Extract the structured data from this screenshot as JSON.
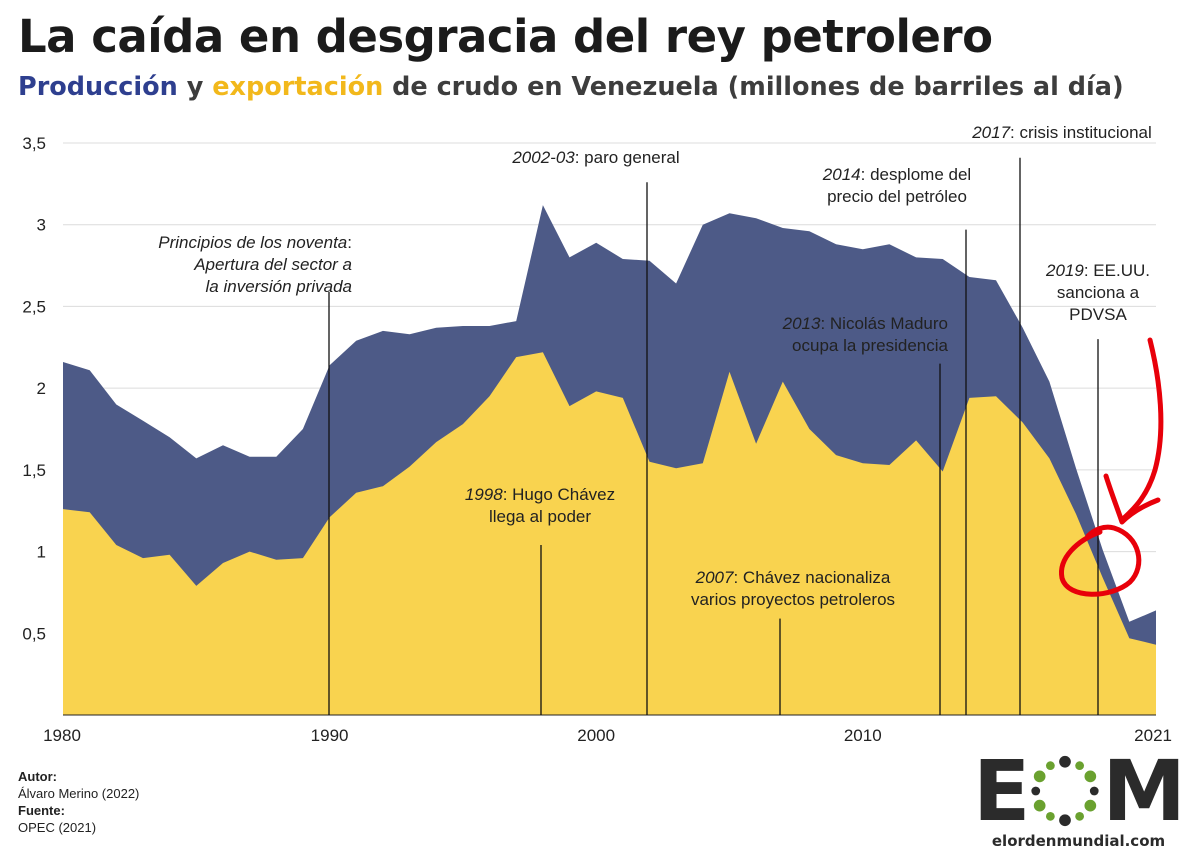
{
  "title": "La caída en desgracia del rey petrolero",
  "subtitle": {
    "part1": "Producción",
    "part2": " y ",
    "part3": "exportación",
    "part4": " de crudo en Venezuela (millones de barriles al día)"
  },
  "colors": {
    "production": "#4d5a87",
    "export": "#f9d34f",
    "production_text": "#2e3f8f",
    "export_text": "#f2b81b",
    "annotation_line": "#111111",
    "red_marker": "#e8000a"
  },
  "chart_data": {
    "type": "area",
    "x": [
      1980,
      1981,
      1982,
      1983,
      1984,
      1985,
      1986,
      1987,
      1988,
      1989,
      1990,
      1991,
      1992,
      1993,
      1994,
      1995,
      1996,
      1997,
      1998,
      1999,
      2000,
      2001,
      2002,
      2003,
      2004,
      2005,
      2006,
      2007,
      2008,
      2009,
      2010,
      2011,
      2012,
      2013,
      2014,
      2015,
      2016,
      2017,
      2018,
      2019,
      2020,
      2021
    ],
    "series": [
      {
        "name": "Producción",
        "values": [
          2.16,
          2.11,
          1.9,
          1.8,
          1.7,
          1.57,
          1.65,
          1.58,
          1.58,
          1.75,
          2.14,
          2.29,
          2.35,
          2.33,
          2.37,
          2.38,
          2.38,
          2.41,
          3.12,
          2.8,
          2.89,
          2.79,
          2.78,
          2.64,
          3.0,
          3.07,
          3.04,
          2.98,
          2.96,
          2.88,
          2.85,
          2.88,
          2.8,
          2.79,
          2.68,
          2.66,
          2.37,
          2.04,
          1.51,
          1.01,
          0.57,
          0.64
        ]
      },
      {
        "name": "Exportación",
        "values": [
          1.26,
          1.24,
          1.04,
          0.96,
          0.98,
          0.79,
          0.93,
          1.0,
          0.95,
          0.96,
          1.21,
          1.36,
          1.4,
          1.52,
          1.67,
          1.78,
          1.95,
          2.19,
          2.22,
          1.89,
          1.98,
          1.94,
          1.55,
          1.51,
          1.54,
          2.1,
          1.66,
          2.04,
          1.75,
          1.59,
          1.54,
          1.53,
          1.68,
          1.49,
          1.94,
          1.95,
          1.79,
          1.57,
          1.23,
          0.84,
          0.47,
          0.43
        ]
      }
    ],
    "ylim": [
      0,
      3.5
    ],
    "y_ticks": [
      {
        "value": 0.5,
        "label": "0,5"
      },
      {
        "value": 1,
        "label": "1"
      },
      {
        "value": 1.5,
        "label": "1,5"
      },
      {
        "value": 2,
        "label": "2"
      },
      {
        "value": 2.5,
        "label": "2,5"
      },
      {
        "value": 3,
        "label": "3"
      },
      {
        "value": 3.5,
        "label": "3,5"
      }
    ],
    "x_ticks": [
      {
        "value": 1980,
        "label": "1980"
      },
      {
        "value": 1990,
        "label": "1990"
      },
      {
        "value": 2000,
        "label": "2000"
      },
      {
        "value": 2010,
        "label": "2010"
      },
      {
        "value": 2021,
        "label": "2021"
      }
    ],
    "annotations": [
      {
        "year": 1990,
        "from_value": 2.59,
        "lines": [
          {
            "em": "Principios de los noventa",
            "text": ":"
          },
          {
            "em": "Apertura del sector a",
            "text": ""
          },
          {
            "em": "la inversión privada",
            "text": ""
          }
        ]
      },
      {
        "year": 1998,
        "from_value": 1.04,
        "lines": [
          {
            "em": "1998",
            "text": ": Hugo Chávez"
          },
          {
            "em": "",
            "text": "llega al poder"
          }
        ]
      },
      {
        "year": 2002,
        "from_value": 3.26,
        "lines": [
          {
            "em": "2002-03",
            "text": ": paro general"
          }
        ]
      },
      {
        "year": 2007,
        "from_value": 0.59,
        "lines": [
          {
            "em": "2007",
            "text": ": Chávez nacionaliza"
          },
          {
            "em": "",
            "text": "varios proyectos petroleros"
          }
        ]
      },
      {
        "year": 2013,
        "from_value": 2.15,
        "lines": [
          {
            "em": "2013",
            "text": ": Nicolás Maduro"
          },
          {
            "em": "",
            "text": "ocupa la presidencia"
          }
        ]
      },
      {
        "year": 2014,
        "from_value": 2.97,
        "lines": [
          {
            "em": "2014",
            "text": ": desplome del"
          },
          {
            "em": "",
            "text": "precio del petróleo"
          }
        ]
      },
      {
        "year": 2016,
        "from_value": 3.41,
        "lines": [
          {
            "em": "2017",
            "text": ": crisis institucional"
          }
        ]
      },
      {
        "year": 2019,
        "from_value": 2.3,
        "lines": [
          {
            "em": "2019",
            "text": ": EE.UU."
          },
          {
            "em": "",
            "text": "sanciona a"
          },
          {
            "em": "",
            "text": "PDVSA"
          }
        ]
      }
    ]
  },
  "credits": {
    "author_label": "Autor:",
    "author": "Álvaro Merino (2022)",
    "source_label": "Fuente:",
    "source": "OPEC (2021)"
  },
  "logo": {
    "left": "E",
    "right": "M",
    "url": "elordenmundial.com"
  }
}
